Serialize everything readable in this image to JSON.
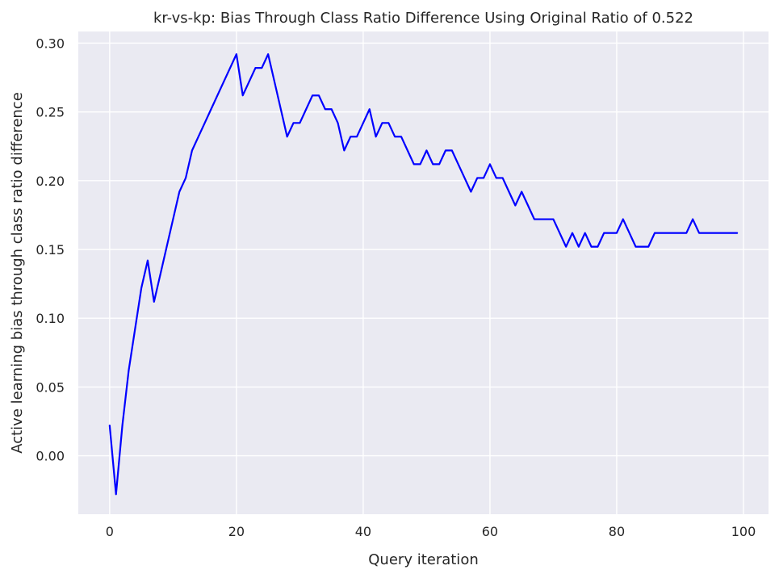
{
  "chart_data": {
    "type": "line",
    "title": "kr-vs-kp: Bias Through Class Ratio Difference Using Original Ratio of 0.522",
    "xlabel": "Query iteration",
    "ylabel": "Active learning bias through class ratio difference",
    "xlim": [
      -4.95,
      103.95
    ],
    "ylim": [
      -0.0425,
      0.3085
    ],
    "xticks": [
      0,
      20,
      40,
      60,
      80,
      100
    ],
    "xtick_labels": [
      "0",
      "20",
      "40",
      "60",
      "80",
      "100"
    ],
    "yticks": [
      0.0,
      0.05,
      0.1,
      0.15,
      0.2,
      0.25,
      0.3
    ],
    "ytick_labels": [
      "0.00",
      "0.05",
      "0.10",
      "0.15",
      "0.20",
      "0.25",
      "0.30"
    ],
    "grid": true,
    "colors": {
      "background": "#eaeaf2",
      "grid": "#ffffff",
      "line": "#0000ff",
      "text": "#262626"
    },
    "series": [
      {
        "color": "#0000ff",
        "x": [
          0,
          1,
          2,
          3,
          4,
          5,
          6,
          7,
          8,
          9,
          10,
          11,
          12,
          13,
          14,
          15,
          16,
          17,
          18,
          19,
          20,
          21,
          22,
          23,
          24,
          25,
          26,
          27,
          28,
          29,
          30,
          31,
          32,
          33,
          34,
          35,
          36,
          37,
          38,
          39,
          40,
          41,
          42,
          43,
          44,
          45,
          46,
          47,
          48,
          49,
          50,
          51,
          52,
          53,
          54,
          55,
          56,
          57,
          58,
          59,
          60,
          61,
          62,
          63,
          64,
          65,
          66,
          67,
          68,
          69,
          70,
          71,
          72,
          73,
          74,
          75,
          76,
          77,
          78,
          79,
          80,
          81,
          82,
          83,
          84,
          85,
          86,
          87,
          88,
          89,
          90,
          91,
          92,
          93,
          94,
          95,
          96,
          97,
          98,
          99
        ],
        "y": [
          0.022,
          -0.028,
          0.022,
          0.062,
          0.092,
          0.122,
          0.142,
          0.112,
          0.132,
          0.152,
          0.172,
          0.192,
          0.202,
          0.222,
          0.232,
          0.242,
          0.252,
          0.262,
          0.272,
          0.282,
          0.292,
          0.262,
          0.272,
          0.282,
          0.282,
          0.292,
          0.272,
          0.252,
          0.232,
          0.242,
          0.242,
          0.252,
          0.262,
          0.262,
          0.252,
          0.252,
          0.242,
          0.222,
          0.232,
          0.232,
          0.242,
          0.252,
          0.232,
          0.242,
          0.242,
          0.232,
          0.232,
          0.222,
          0.212,
          0.212,
          0.222,
          0.212,
          0.212,
          0.222,
          0.222,
          0.212,
          0.202,
          0.192,
          0.202,
          0.202,
          0.212,
          0.202,
          0.202,
          0.192,
          0.182,
          0.192,
          0.182,
          0.172,
          0.172,
          0.172,
          0.172,
          0.162,
          0.152,
          0.162,
          0.152,
          0.162,
          0.152,
          0.152,
          0.162,
          0.162,
          0.162,
          0.172,
          0.162,
          0.152,
          0.152,
          0.152,
          0.162,
          0.162,
          0.162,
          0.162,
          0.162,
          0.162,
          0.172,
          0.162,
          0.162,
          0.162,
          0.162,
          0.162,
          0.162,
          0.162
        ]
      }
    ]
  }
}
